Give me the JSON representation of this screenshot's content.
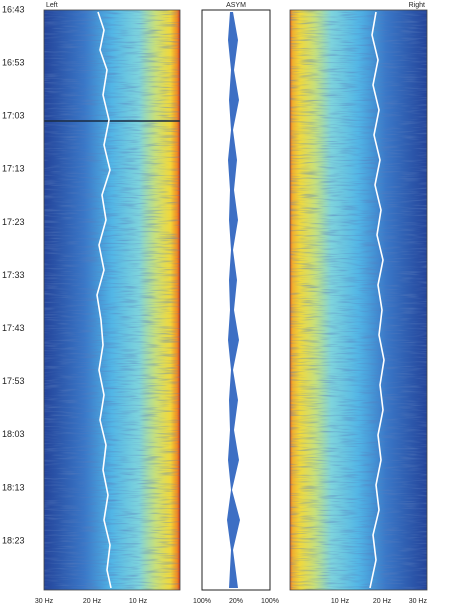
{
  "time_labels": [
    "16:43",
    "16:53",
    "17:03",
    "17:13",
    "17:23",
    "17:33",
    "17:43",
    "17:53",
    "18:03",
    "18:13",
    "18:23"
  ],
  "panels": {
    "left": {
      "label": "Left",
      "axis_labels": [
        "30 Hz",
        "20 Hz",
        "10 Hz"
      ]
    },
    "asym": {
      "label": "ASYM",
      "axis_labels": [
        "100%",
        "20%",
        "100%"
      ]
    },
    "right": {
      "label": "Right",
      "axis_labels": [
        "10 Hz",
        "20 Hz",
        "30 Hz"
      ]
    }
  }
}
